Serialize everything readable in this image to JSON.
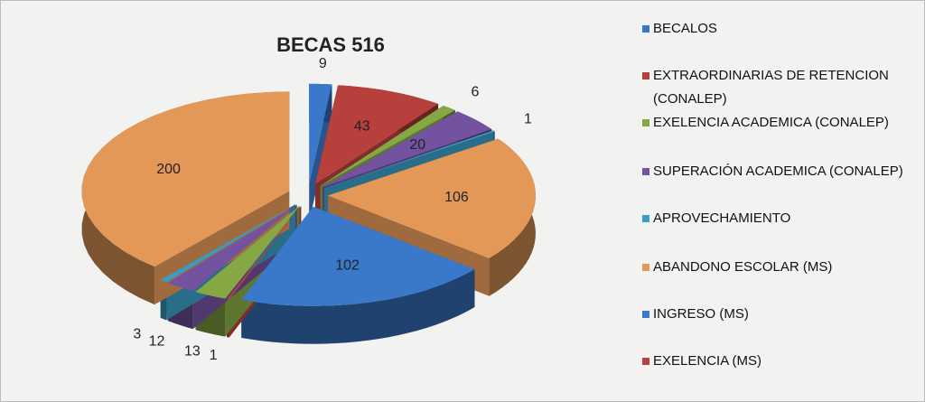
{
  "chart_data": {
    "type": "pie",
    "title": "BECAS 516",
    "categories": [
      "BECALOS",
      "EXTRAORDINARIAS DE RETENCION (CONALEP)",
      "EXELENCIA ACADEMICA (CONALEP)",
      "SUPERACIÓN ACADEMICA (CONALEP)",
      "APROVECHAMIENTO",
      "ABANDONO ESCOLAR (MS)",
      "INGRESO (MS)",
      "EXELENCIA (MS)",
      null,
      null,
      null,
      null
    ],
    "values": [
      9,
      43,
      6,
      20,
      1,
      106,
      102,
      1,
      13,
      12,
      3,
      200
    ],
    "colors": [
      "#3a78c9",
      "#b8403c",
      "#86a844",
      "#7352a0",
      "#3a9cc4",
      "#e39858",
      "#3a78c9",
      "#b8403c",
      "#86a844",
      "#7352a0",
      "#3a9cc4",
      "#e39858"
    ],
    "legend": "right"
  }
}
